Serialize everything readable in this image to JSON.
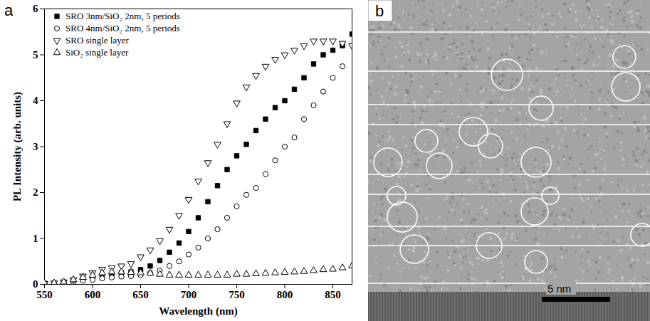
{
  "chart_data": {
    "type": "scatter",
    "panel_label": "a",
    "x_label": "Wavelength (nm)",
    "y_label": "PL Intensity (arb. units)",
    "xlim": [
      550,
      870
    ],
    "xticks": [
      550,
      600,
      650,
      700,
      750,
      800,
      850
    ],
    "ylim": [
      0,
      6
    ],
    "yticks": [
      0,
      1,
      2,
      3,
      4,
      5,
      6
    ],
    "legend": "upper left",
    "x": [
      550,
      560,
      570,
      580,
      590,
      600,
      610,
      620,
      630,
      640,
      650,
      660,
      670,
      680,
      690,
      700,
      710,
      720,
      730,
      740,
      750,
      760,
      770,
      780,
      790,
      800,
      810,
      820,
      830,
      840,
      850,
      860,
      870
    ],
    "series": [
      {
        "name": "SRO 3nm/SiO₂ 2nm, 5 periods",
        "color": "#000000",
        "marker": "filled square",
        "values": [
          0.02,
          0.03,
          0.05,
          0.08,
          0.12,
          0.16,
          0.2,
          0.22,
          0.25,
          0.27,
          0.32,
          0.4,
          0.52,
          0.7,
          0.9,
          1.15,
          1.45,
          1.8,
          2.15,
          2.5,
          2.8,
          3.05,
          3.35,
          3.6,
          3.85,
          4.0,
          4.25,
          4.5,
          4.8,
          5.0,
          5.1,
          5.2,
          5.45
        ]
      },
      {
        "name": "SRO 4nm/SiO₂ 2nm, 5 periods",
        "color": "#000000",
        "marker": "open circle",
        "values": [
          0.02,
          0.02,
          0.03,
          0.05,
          0.08,
          0.1,
          0.13,
          0.15,
          0.17,
          0.18,
          0.2,
          0.25,
          0.3,
          0.4,
          0.5,
          0.65,
          0.8,
          1.0,
          1.2,
          1.45,
          1.7,
          1.95,
          2.1,
          2.4,
          2.7,
          3.0,
          3.2,
          3.6,
          3.9,
          4.2,
          4.5,
          4.75,
          null
        ]
      },
      {
        "name": "SRO single layer",
        "color": "#000000",
        "marker": "open triangle-down",
        "values": [
          0.02,
          0.03,
          0.05,
          0.1,
          0.18,
          0.25,
          0.33,
          0.36,
          0.4,
          0.45,
          0.6,
          0.75,
          0.95,
          1.2,
          1.5,
          1.85,
          2.25,
          2.65,
          3.05,
          3.5,
          3.95,
          4.3,
          4.55,
          4.75,
          4.9,
          5.0,
          5.1,
          5.2,
          5.3,
          5.3,
          5.3,
          5.25,
          5.2
        ]
      },
      {
        "name": "SiO₂ single layer",
        "color": "#000000",
        "marker": "open triangle",
        "values": [
          0.02,
          0.03,
          0.05,
          0.1,
          0.15,
          0.2,
          0.25,
          0.27,
          0.27,
          0.26,
          0.25,
          0.24,
          0.22,
          0.2,
          0.2,
          0.2,
          0.2,
          0.2,
          0.2,
          0.2,
          0.22,
          0.22,
          0.23,
          0.24,
          0.25,
          0.26,
          0.27,
          0.28,
          0.3,
          0.32,
          0.33,
          0.36,
          0.4
        ]
      }
    ]
  },
  "image_panel": {
    "panel_label": "b",
    "scale_bar_label": "5 nm"
  }
}
